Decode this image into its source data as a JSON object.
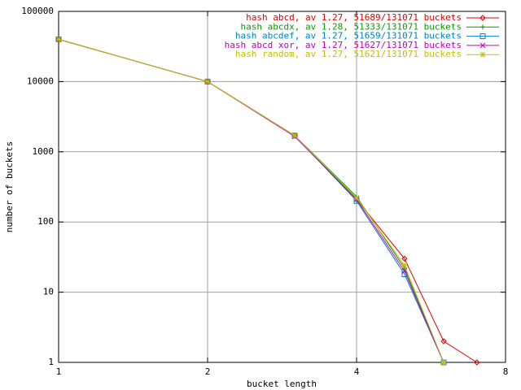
{
  "chart_data": {
    "type": "line",
    "xlabel": "bucket length",
    "ylabel": "number of buckets",
    "x": [
      1,
      2,
      3,
      4,
      5,
      6,
      7
    ],
    "xlog": true,
    "ylog": true,
    "xlim": [
      1,
      8
    ],
    "ylim": [
      1,
      100000
    ],
    "xticks": [
      1,
      2,
      4,
      8
    ],
    "yticks": [
      1,
      10,
      100,
      1000,
      10000,
      100000
    ],
    "grid": true,
    "legend": "top-right",
    "series": [
      {
        "name": "hash abcd, av 1.27, 51689/131071 buckets",
        "color": "#e00000",
        "marker": "diamond",
        "values": [
          40000,
          10000,
          1700,
          210,
          30,
          2,
          1
        ]
      },
      {
        "name": "hash abcdx, av 1.28, 51333/131071 buckets",
        "color": "#00a000",
        "marker": "plus",
        "values": [
          40000,
          10000,
          1700,
          230,
          22,
          1,
          null
        ]
      },
      {
        "name": "hash abcdef, av 1.27, 51659/131071 buckets",
        "color": "#0080c0",
        "marker": "square",
        "values": [
          40000,
          10000,
          1700,
          200,
          18,
          1,
          null
        ]
      },
      {
        "name": "hash abcd xor, av 1.27, 51627/131071 buckets",
        "color": "#c000c0",
        "marker": "cross",
        "values": [
          40000,
          10000,
          1650,
          210,
          20,
          1,
          null
        ]
      },
      {
        "name": "hash random, av 1.27, 51621/131071 buckets",
        "color": "#c0c000",
        "marker": "star",
        "values": [
          40000,
          10000,
          1700,
          220,
          24,
          1,
          null
        ]
      }
    ]
  }
}
